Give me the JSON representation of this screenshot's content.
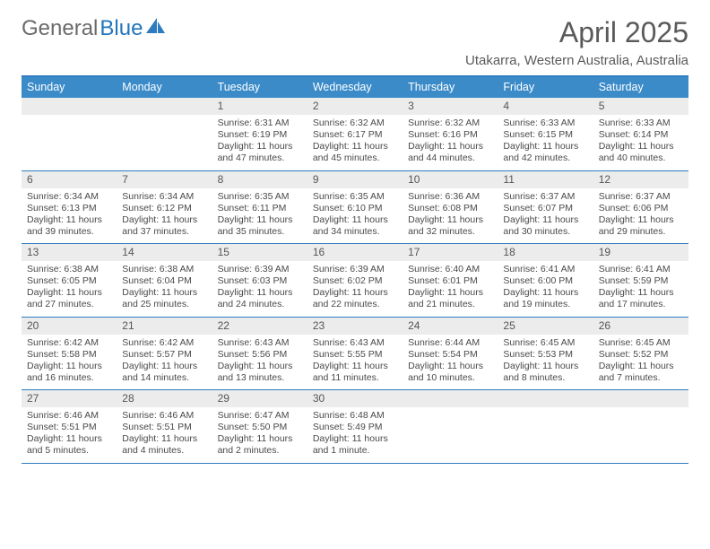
{
  "logo": {
    "part1": "General",
    "part2": "Blue"
  },
  "title": "April 2025",
  "subtitle": "Utakarra, Western Australia, Australia",
  "colors": {
    "header_bg": "#3b8bc9",
    "header_text": "#ffffff",
    "border": "#2f7bbf",
    "daynum_bg": "#ececec",
    "text": "#4a4a4a",
    "title_text": "#5a5a5a",
    "logo_blue": "#2176bd"
  },
  "day_headers": [
    "Sunday",
    "Monday",
    "Tuesday",
    "Wednesday",
    "Thursday",
    "Friday",
    "Saturday"
  ],
  "weeks": [
    [
      {
        "n": "",
        "lines": []
      },
      {
        "n": "",
        "lines": []
      },
      {
        "n": "1",
        "lines": [
          "Sunrise: 6:31 AM",
          "Sunset: 6:19 PM",
          "Daylight: 11 hours and 47 minutes."
        ]
      },
      {
        "n": "2",
        "lines": [
          "Sunrise: 6:32 AM",
          "Sunset: 6:17 PM",
          "Daylight: 11 hours and 45 minutes."
        ]
      },
      {
        "n": "3",
        "lines": [
          "Sunrise: 6:32 AM",
          "Sunset: 6:16 PM",
          "Daylight: 11 hours and 44 minutes."
        ]
      },
      {
        "n": "4",
        "lines": [
          "Sunrise: 6:33 AM",
          "Sunset: 6:15 PM",
          "Daylight: 11 hours and 42 minutes."
        ]
      },
      {
        "n": "5",
        "lines": [
          "Sunrise: 6:33 AM",
          "Sunset: 6:14 PM",
          "Daylight: 11 hours and 40 minutes."
        ]
      }
    ],
    [
      {
        "n": "6",
        "lines": [
          "Sunrise: 6:34 AM",
          "Sunset: 6:13 PM",
          "Daylight: 11 hours and 39 minutes."
        ]
      },
      {
        "n": "7",
        "lines": [
          "Sunrise: 6:34 AM",
          "Sunset: 6:12 PM",
          "Daylight: 11 hours and 37 minutes."
        ]
      },
      {
        "n": "8",
        "lines": [
          "Sunrise: 6:35 AM",
          "Sunset: 6:11 PM",
          "Daylight: 11 hours and 35 minutes."
        ]
      },
      {
        "n": "9",
        "lines": [
          "Sunrise: 6:35 AM",
          "Sunset: 6:10 PM",
          "Daylight: 11 hours and 34 minutes."
        ]
      },
      {
        "n": "10",
        "lines": [
          "Sunrise: 6:36 AM",
          "Sunset: 6:08 PM",
          "Daylight: 11 hours and 32 minutes."
        ]
      },
      {
        "n": "11",
        "lines": [
          "Sunrise: 6:37 AM",
          "Sunset: 6:07 PM",
          "Daylight: 11 hours and 30 minutes."
        ]
      },
      {
        "n": "12",
        "lines": [
          "Sunrise: 6:37 AM",
          "Sunset: 6:06 PM",
          "Daylight: 11 hours and 29 minutes."
        ]
      }
    ],
    [
      {
        "n": "13",
        "lines": [
          "Sunrise: 6:38 AM",
          "Sunset: 6:05 PM",
          "Daylight: 11 hours and 27 minutes."
        ]
      },
      {
        "n": "14",
        "lines": [
          "Sunrise: 6:38 AM",
          "Sunset: 6:04 PM",
          "Daylight: 11 hours and 25 minutes."
        ]
      },
      {
        "n": "15",
        "lines": [
          "Sunrise: 6:39 AM",
          "Sunset: 6:03 PM",
          "Daylight: 11 hours and 24 minutes."
        ]
      },
      {
        "n": "16",
        "lines": [
          "Sunrise: 6:39 AM",
          "Sunset: 6:02 PM",
          "Daylight: 11 hours and 22 minutes."
        ]
      },
      {
        "n": "17",
        "lines": [
          "Sunrise: 6:40 AM",
          "Sunset: 6:01 PM",
          "Daylight: 11 hours and 21 minutes."
        ]
      },
      {
        "n": "18",
        "lines": [
          "Sunrise: 6:41 AM",
          "Sunset: 6:00 PM",
          "Daylight: 11 hours and 19 minutes."
        ]
      },
      {
        "n": "19",
        "lines": [
          "Sunrise: 6:41 AM",
          "Sunset: 5:59 PM",
          "Daylight: 11 hours and 17 minutes."
        ]
      }
    ],
    [
      {
        "n": "20",
        "lines": [
          "Sunrise: 6:42 AM",
          "Sunset: 5:58 PM",
          "Daylight: 11 hours and 16 minutes."
        ]
      },
      {
        "n": "21",
        "lines": [
          "Sunrise: 6:42 AM",
          "Sunset: 5:57 PM",
          "Daylight: 11 hours and 14 minutes."
        ]
      },
      {
        "n": "22",
        "lines": [
          "Sunrise: 6:43 AM",
          "Sunset: 5:56 PM",
          "Daylight: 11 hours and 13 minutes."
        ]
      },
      {
        "n": "23",
        "lines": [
          "Sunrise: 6:43 AM",
          "Sunset: 5:55 PM",
          "Daylight: 11 hours and 11 minutes."
        ]
      },
      {
        "n": "24",
        "lines": [
          "Sunrise: 6:44 AM",
          "Sunset: 5:54 PM",
          "Daylight: 11 hours and 10 minutes."
        ]
      },
      {
        "n": "25",
        "lines": [
          "Sunrise: 6:45 AM",
          "Sunset: 5:53 PM",
          "Daylight: 11 hours and 8 minutes."
        ]
      },
      {
        "n": "26",
        "lines": [
          "Sunrise: 6:45 AM",
          "Sunset: 5:52 PM",
          "Daylight: 11 hours and 7 minutes."
        ]
      }
    ],
    [
      {
        "n": "27",
        "lines": [
          "Sunrise: 6:46 AM",
          "Sunset: 5:51 PM",
          "Daylight: 11 hours and 5 minutes."
        ]
      },
      {
        "n": "28",
        "lines": [
          "Sunrise: 6:46 AM",
          "Sunset: 5:51 PM",
          "Daylight: 11 hours and 4 minutes."
        ]
      },
      {
        "n": "29",
        "lines": [
          "Sunrise: 6:47 AM",
          "Sunset: 5:50 PM",
          "Daylight: 11 hours and 2 minutes."
        ]
      },
      {
        "n": "30",
        "lines": [
          "Sunrise: 6:48 AM",
          "Sunset: 5:49 PM",
          "Daylight: 11 hours and 1 minute."
        ]
      },
      {
        "n": "",
        "lines": []
      },
      {
        "n": "",
        "lines": []
      },
      {
        "n": "",
        "lines": []
      }
    ]
  ]
}
